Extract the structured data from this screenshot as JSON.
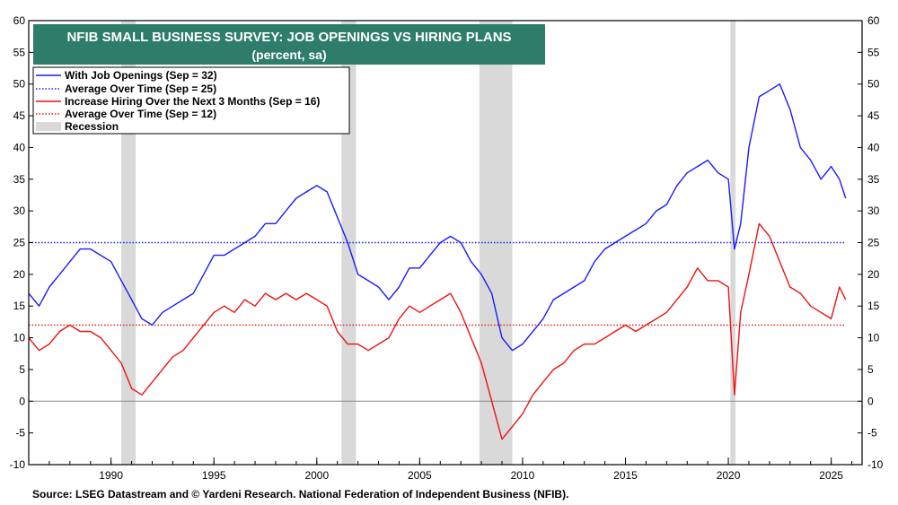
{
  "chart_data": {
    "type": "line",
    "title": "NFIB SMALL BUSINESS SURVEY: JOB OPENINGS VS HIRING PLANS",
    "subtitle": "(percent, sa)",
    "source": "Source: LSEG Datastream and © Yardeni Research. National Federation of Independent Business (NFIB).",
    "xlim": [
      1986,
      2026.5
    ],
    "ylim": [
      -10,
      60
    ],
    "y_ticks": [
      -10,
      -5,
      0,
      5,
      10,
      15,
      20,
      25,
      30,
      35,
      40,
      45,
      50,
      55,
      60
    ],
    "x_tick_labels": [
      "1990",
      "1995",
      "2000",
      "2005",
      "2010",
      "2015",
      "2020",
      "2025"
    ],
    "x_ticks": [
      1990,
      1995,
      2000,
      2005,
      2010,
      2015,
      2020,
      2025
    ],
    "grid": false,
    "legend_position": "top-left",
    "colors": {
      "openings": "#1a1aff",
      "hiring": "#ee1111",
      "recession": "#d9d9d9",
      "title_bg": "#2e7d6b",
      "zero_line": "#888888"
    },
    "legend": [
      {
        "label": "With Job Openings  (Sep = 32)",
        "style": "solid",
        "color": "#1a1aff"
      },
      {
        "label": "Average Over Time (Sep = 25)",
        "style": "dotted",
        "color": "#1a1aff"
      },
      {
        "label": "Increase Hiring Over the Next 3 Months (Sep = 16)",
        "style": "solid",
        "color": "#ee1111"
      },
      {
        "label": "Average Over Time (Sep = 12)",
        "style": "dotted",
        "color": "#ee1111"
      },
      {
        "label": "Recession",
        "style": "box",
        "color": "#d9d9d9"
      }
    ],
    "recessions": [
      [
        1990.5,
        1991.2
      ],
      [
        2001.2,
        2001.9
      ],
      [
        2007.9,
        2009.5
      ],
      [
        2020.1,
        2020.35
      ]
    ],
    "averages": [
      {
        "name": "Average Over Time (Sep = 25)",
        "value": 25,
        "color": "#1a1aff"
      },
      {
        "name": "Average Over Time (Sep = 12)",
        "value": 12,
        "color": "#ee1111"
      }
    ],
    "series": [
      {
        "name": "With Job Openings  (Sep = 32)",
        "color": "#1a1aff",
        "x": [
          1986.0,
          1986.5,
          1987.0,
          1987.5,
          1988.0,
          1988.5,
          1989.0,
          1989.5,
          1990.0,
          1990.5,
          1991.0,
          1991.5,
          1992.0,
          1992.5,
          1993.0,
          1993.5,
          1994.0,
          1994.5,
          1995.0,
          1995.5,
          1996.0,
          1996.5,
          1997.0,
          1997.5,
          1998.0,
          1998.5,
          1999.0,
          1999.5,
          2000.0,
          2000.5,
          2001.0,
          2001.5,
          2002.0,
          2002.5,
          2003.0,
          2003.5,
          2004.0,
          2004.5,
          2005.0,
          2005.5,
          2006.0,
          2006.5,
          2007.0,
          2007.5,
          2008.0,
          2008.5,
          2009.0,
          2009.5,
          2010.0,
          2010.5,
          2011.0,
          2011.5,
          2012.0,
          2012.5,
          2013.0,
          2013.5,
          2014.0,
          2014.5,
          2015.0,
          2015.5,
          2016.0,
          2016.5,
          2017.0,
          2017.5,
          2018.0,
          2018.5,
          2019.0,
          2019.5,
          2020.0,
          2020.3,
          2020.6,
          2021.0,
          2021.5,
          2022.0,
          2022.5,
          2023.0,
          2023.5,
          2024.0,
          2024.5,
          2025.0,
          2025.4,
          2025.7
        ],
        "values": [
          17,
          15,
          18,
          20,
          22,
          24,
          24,
          23,
          22,
          19,
          16,
          13,
          12,
          14,
          15,
          16,
          17,
          20,
          23,
          23,
          24,
          25,
          26,
          28,
          28,
          30,
          32,
          33,
          34,
          33,
          29,
          25,
          20,
          19,
          18,
          16,
          18,
          21,
          21,
          23,
          25,
          26,
          25,
          22,
          20,
          17,
          10,
          8,
          9,
          11,
          13,
          16,
          17,
          18,
          19,
          22,
          24,
          25,
          26,
          27,
          28,
          30,
          31,
          34,
          36,
          37,
          38,
          36,
          35,
          24,
          28,
          40,
          48,
          49,
          50,
          46,
          40,
          38,
          35,
          37,
          35,
          32
        ]
      },
      {
        "name": "Increase Hiring Over the Next 3 Months (Sep = 16)",
        "color": "#ee1111",
        "x": [
          1986.0,
          1986.5,
          1987.0,
          1987.5,
          1988.0,
          1988.5,
          1989.0,
          1989.5,
          1990.0,
          1990.5,
          1991.0,
          1991.5,
          1992.0,
          1992.5,
          1993.0,
          1993.5,
          1994.0,
          1994.5,
          1995.0,
          1995.5,
          1996.0,
          1996.5,
          1997.0,
          1997.5,
          1998.0,
          1998.5,
          1999.0,
          1999.5,
          2000.0,
          2000.5,
          2001.0,
          2001.5,
          2002.0,
          2002.5,
          2003.0,
          2003.5,
          2004.0,
          2004.5,
          2005.0,
          2005.5,
          2006.0,
          2006.5,
          2007.0,
          2007.5,
          2008.0,
          2008.5,
          2009.0,
          2009.5,
          2010.0,
          2010.5,
          2011.0,
          2011.5,
          2012.0,
          2012.5,
          2013.0,
          2013.5,
          2014.0,
          2014.5,
          2015.0,
          2015.5,
          2016.0,
          2016.5,
          2017.0,
          2017.5,
          2018.0,
          2018.5,
          2019.0,
          2019.5,
          2020.0,
          2020.3,
          2020.6,
          2021.0,
          2021.5,
          2022.0,
          2022.5,
          2023.0,
          2023.5,
          2024.0,
          2024.5,
          2025.0,
          2025.4,
          2025.7
        ],
        "values": [
          10,
          8,
          9,
          11,
          12,
          11,
          11,
          10,
          8,
          6,
          2,
          1,
          3,
          5,
          7,
          8,
          10,
          12,
          14,
          15,
          14,
          16,
          15,
          17,
          16,
          17,
          16,
          17,
          16,
          15,
          11,
          9,
          9,
          8,
          9,
          10,
          13,
          15,
          14,
          15,
          16,
          17,
          14,
          10,
          6,
          0,
          -6,
          -4,
          -2,
          1,
          3,
          5,
          6,
          8,
          9,
          9,
          10,
          11,
          12,
          11,
          12,
          13,
          14,
          16,
          18,
          21,
          19,
          19,
          18,
          1,
          14,
          20,
          28,
          26,
          22,
          18,
          17,
          15,
          14,
          13,
          18,
          16
        ]
      }
    ]
  }
}
